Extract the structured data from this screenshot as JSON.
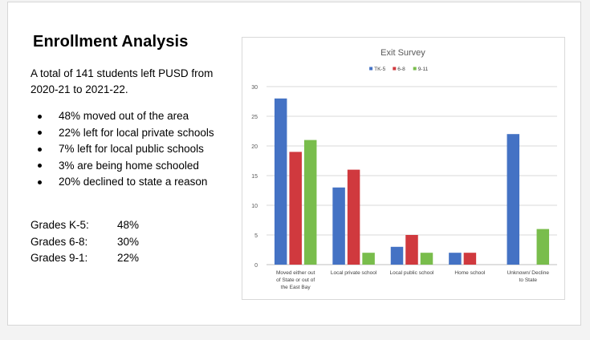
{
  "slide": {
    "title": "Enrollment Analysis",
    "intro": "A total of 141 students left PUSD from 2020-21 to 2021-22.",
    "bullets": [
      "48% moved out of the area",
      "22% left for local private schools",
      "7% left for local public schools",
      "3% are being home schooled",
      "20% declined to state a reason"
    ],
    "grades": [
      {
        "label": "Grades K-5:",
        "value": "48%"
      },
      {
        "label": "Grades 6-8:",
        "value": "30%"
      },
      {
        "label": "Grades 9-1:",
        "value": "22%"
      }
    ]
  },
  "chart_data": {
    "type": "bar",
    "title": "Exit Survey",
    "xlabel": "",
    "ylabel": "",
    "ylim": [
      0,
      30
    ],
    "yticks": [
      0,
      5,
      10,
      15,
      20,
      25,
      30
    ],
    "grid": true,
    "legend_position": "top",
    "categories": [
      [
        "Moved either out",
        "of State or out of",
        "the East Bay"
      ],
      [
        "Local private school"
      ],
      [
        "Local public school"
      ],
      [
        "Home school"
      ],
      [
        "Unknown/ Decline",
        "to State"
      ]
    ],
    "series": [
      {
        "name": "TK-5",
        "color": "#4472c4",
        "values": [
          28,
          13,
          3,
          2,
          22
        ]
      },
      {
        "name": "6-8",
        "color": "#d0393e",
        "values": [
          19,
          16,
          5,
          2,
          0
        ]
      },
      {
        "name": "9-11",
        "color": "#79bd4c",
        "values": [
          21,
          2,
          2,
          0,
          6
        ]
      }
    ]
  }
}
